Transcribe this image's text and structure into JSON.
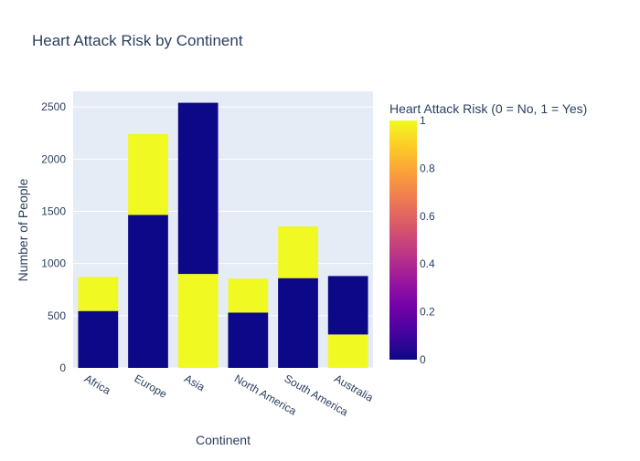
{
  "chart_data": {
    "type": "bar",
    "title": "Heart Attack Risk by Continent",
    "xlabel": "Continent",
    "ylabel": "Number of People",
    "categories": [
      "Africa",
      "Europe",
      "Asia",
      "North America",
      "South America",
      "Australia"
    ],
    "ylim": [
      0,
      2650
    ],
    "yticks": [
      0,
      500,
      1000,
      1500,
      2000,
      2500
    ],
    "bars": [
      {
        "category": "Africa",
        "segments": [
          {
            "base": 0,
            "value": 545,
            "risk": 0
          },
          {
            "base": 545,
            "value": 325,
            "risk": 1
          }
        ]
      },
      {
        "category": "Europe",
        "segments": [
          {
            "base": 0,
            "value": 1465,
            "risk": 0
          },
          {
            "base": 1465,
            "value": 775,
            "risk": 1
          }
        ]
      },
      {
        "category": "Asia",
        "segments": [
          {
            "base": 0,
            "value": 900,
            "risk": 1
          },
          {
            "base": 900,
            "value": 1640,
            "risk": 0
          }
        ]
      },
      {
        "category": "North America",
        "segments": [
          {
            "base": 0,
            "value": 530,
            "risk": 0
          },
          {
            "base": 530,
            "value": 325,
            "risk": 1
          }
        ]
      },
      {
        "category": "South America",
        "segments": [
          {
            "base": 0,
            "value": 860,
            "risk": 0
          },
          {
            "base": 860,
            "value": 495,
            "risk": 1
          }
        ]
      },
      {
        "category": "Australia",
        "segments": [
          {
            "base": 0,
            "value": 320,
            "risk": 1
          },
          {
            "base": 320,
            "value": 560,
            "risk": 0
          }
        ]
      }
    ],
    "colorbar": {
      "title": "Heart Attack Risk (0 = No, 1 = Yes)",
      "range": [
        0,
        1
      ],
      "ticks": [
        "0",
        "0.2",
        "0.4",
        "0.6",
        "0.8",
        "1"
      ],
      "colorscale": [
        "#0d0887",
        "#46039f",
        "#7201a8",
        "#9c179e",
        "#bd3786",
        "#d8576b",
        "#ed7953",
        "#fb9f3a",
        "#fdca26",
        "#f0f921"
      ]
    },
    "grid": true,
    "colors": {
      "plot_bg": "#e5ecf6",
      "grid": "#ffffff",
      "text": "#2a3f5f",
      "risk_0": "#0d0887",
      "risk_1": "#f0f921"
    }
  }
}
